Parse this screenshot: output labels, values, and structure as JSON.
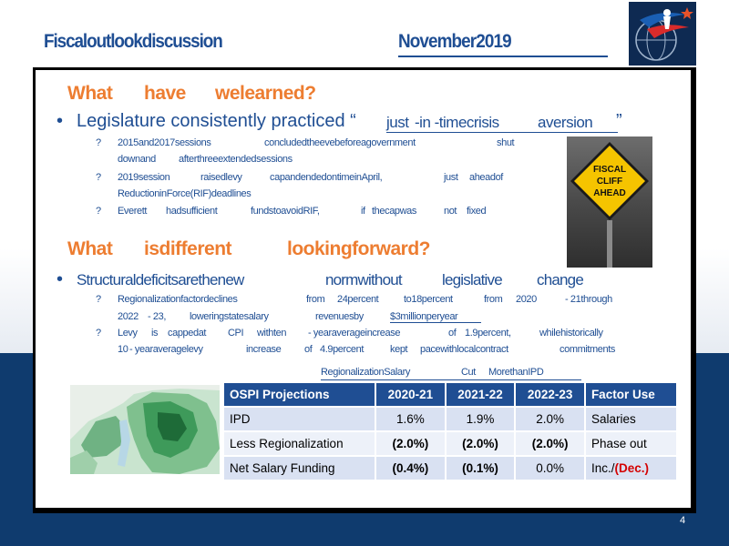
{
  "header": {
    "title": "Fiscaloutlookdiscussion",
    "date": "November2019"
  },
  "section1": {
    "heading_words": [
      "What",
      "have",
      "welearned?"
    ],
    "bullet": {
      "prefix": "Legislature consistently practiced “",
      "q1": "just",
      "q2": "-in -timecrisis",
      "q3": "aversion",
      "suffix": "”"
    },
    "subs": [
      {
        "marker": "?",
        "line1": [
          "2015and2017sessions",
          "concludedtheevebeforeagovernment",
          "shut"
        ],
        "line2": [
          "downand",
          "afterthreeextendedsessions"
        ]
      },
      {
        "marker": "?",
        "line1": [
          "2019session",
          "raisedlevy",
          "capandendedontimeinApril,",
          "just",
          "aheadof"
        ],
        "line2": [
          "ReductioninForce(RIF)deadlines"
        ]
      },
      {
        "marker": "?",
        "line1": [
          "Everett",
          "hadsufficient",
          "fundstoavoidRIF,",
          "if",
          "thecapwas",
          "not",
          "fixed"
        ]
      }
    ]
  },
  "section2": {
    "heading_words": [
      "What",
      "isdifferent",
      "lookingforward?"
    ],
    "bullet_words": [
      "Structuraldeficitsarethenew",
      "normwithout",
      "legislative",
      "change"
    ],
    "subs": [
      {
        "marker": "?",
        "line1": [
          "Regionalizationfactordeclines",
          "from",
          "24percent",
          "to18percent",
          "from",
          "2020",
          "- 21through"
        ],
        "line2": [
          "2022",
          "- 23,",
          "loweringstatesalary",
          "revenuesby",
          "$3millionperyear"
        ]
      },
      {
        "marker": "?",
        "line1": [
          "Levy",
          "is",
          "cappedat",
          "CPI",
          "withten",
          "- yearaverageincrease",
          "of",
          "1.9percent,",
          "whilehistorically"
        ],
        "line2": [
          "10",
          "- yearaveragelevy",
          "increase",
          "of",
          "4.9percent",
          "kept",
          "pacewithlocalcontract",
          "commitments"
        ]
      }
    ]
  },
  "image_labels": {
    "cliff_sign": [
      "FISCAL",
      "CLIFF",
      "AHEAD"
    ]
  },
  "table": {
    "caption": [
      "RegionalizationSalary",
      "Cut",
      "MorethanIPD"
    ],
    "headers": [
      "OSPI Projections",
      "2020-21",
      "2021-22",
      "2022-23",
      "Factor Use"
    ],
    "rows": [
      [
        "IPD",
        "1.6%",
        "1.9%",
        "2.0%",
        "Salaries"
      ],
      [
        "Less Regionalization",
        "(2.0%)",
        "(2.0%)",
        "(2.0%)",
        "Phase out"
      ],
      [
        "Net Salary Funding",
        "(0.4%)",
        "(0.1%)",
        "0.0%",
        "Inc./"
      ]
    ],
    "dec_label": "(Dec.)"
  },
  "page_number": "4"
}
